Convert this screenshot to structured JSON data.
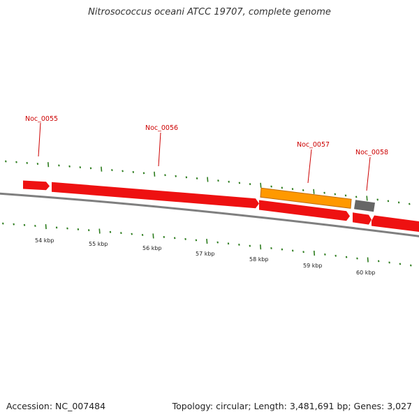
{
  "title": "Nitrosococcus oceani ATCC 19707, complete genome",
  "footer": {
    "accession": "Accession: NC_007484",
    "summary": "Topology: circular; Length: 3,481,691 bp; Genes: 3,027"
  },
  "colors": {
    "background": "#ffffff",
    "backbone": "#7f7f7f",
    "tick": "#2e7d1f",
    "forward_gene": "#ee1111",
    "reverse_gene": "#ee1111",
    "highlight_gene": "#ff9900",
    "other_feature": "#666666",
    "gene_label": "#cc0000"
  },
  "scale": {
    "labels": [
      "54 kbp",
      "55 kbp",
      "56 kbp",
      "57 kbp",
      "58 kbp",
      "59 kbp",
      "60 kbp"
    ]
  },
  "genes": [
    {
      "id": "Noc_0055",
      "color": "forward_gene"
    },
    {
      "id": "Noc_0056",
      "color": "forward_gene"
    },
    {
      "id": "Noc_0057",
      "color": "highlight_gene"
    },
    {
      "id": "Noc_0058",
      "color": "other_feature"
    }
  ]
}
